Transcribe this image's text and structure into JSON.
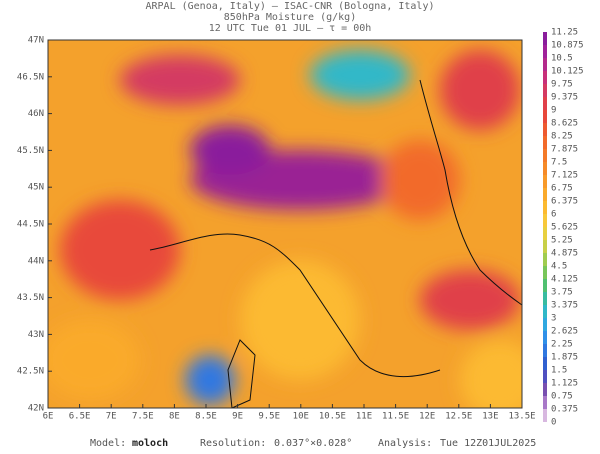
{
  "header": {
    "line1": "ARPAL (Genoa, Italy)  —  ISAC-CNR (Bologna, Italy)",
    "line2": "850hPa Moisture (g/kg)",
    "line3": "12 UTC Tue 01 JUL  —  τ = 00h"
  },
  "map": {
    "lat_labels": [
      "47N",
      "46.5N",
      "46N",
      "45.5N",
      "45N",
      "44.5N",
      "44N",
      "43.5N",
      "43N",
      "42.5N",
      "42N"
    ],
    "lon_labels": [
      "6E",
      "6.5E",
      "7E",
      "7.5E",
      "8E",
      "8.5E",
      "9E",
      "9.5E",
      "10E",
      "10.5E",
      "11E",
      "11.5E",
      "12E",
      "12.5E",
      "13E",
      "13.5E"
    ]
  },
  "colorbar": {
    "labels": [
      "11.25",
      "10.875",
      "10.5",
      "10.125",
      "9.75",
      "9.375",
      "9",
      "8.625",
      "8.25",
      "7.875",
      "7.5",
      "7.125",
      "6.75",
      "6.375",
      "6",
      "5.625",
      "5.25",
      "4.875",
      "4.5",
      "4.125",
      "3.75",
      "3.375",
      "3",
      "2.625",
      "2.25",
      "1.875",
      "1.5",
      "1.125",
      "0.75",
      "0.375",
      "0"
    ],
    "colors": [
      "#8a1e9c",
      "#a0229a",
      "#b42a8c",
      "#c8307a",
      "#d43a62",
      "#e0404a",
      "#e8483a",
      "#ee5a30",
      "#f26a2a",
      "#f47a28",
      "#f68a28",
      "#f89a2a",
      "#faaa2c",
      "#fcba30",
      "#f8c83a",
      "#e8d040",
      "#c8d048",
      "#a0cc50",
      "#78c65a",
      "#50c070",
      "#38bca0",
      "#30b8c8",
      "#30a8e0",
      "#3090e8",
      "#3078e0",
      "#3060d0",
      "#5050c0",
      "#7850b0",
      "#a878c8",
      "#d8b8e0"
    ]
  },
  "footer": {
    "model_label": "Model:",
    "model": "moloch",
    "res_label": "Resolution:",
    "res": "0.037°×0.028°",
    "analysis_label": "Analysis:",
    "analysis": "Tue 12Z01JUL2025"
  }
}
